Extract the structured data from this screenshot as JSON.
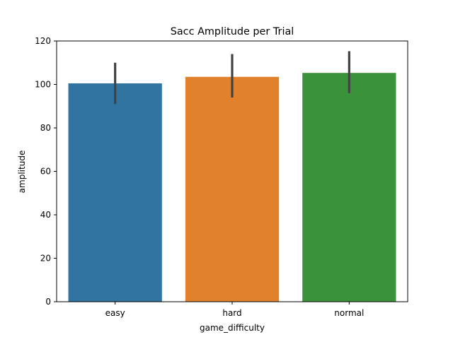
{
  "chart_data": {
    "type": "bar",
    "title": "Sacc Amplitude per Trial",
    "xlabel": "game_difficulty",
    "ylabel": "amplitude",
    "categories": [
      "easy",
      "hard",
      "normal"
    ],
    "values": [
      100.5,
      103.5,
      105.3
    ],
    "error_low": [
      91.0,
      94.0,
      96.0
    ],
    "error_high": [
      110.0,
      114.0,
      115.3
    ],
    "ylim": [
      0,
      120
    ],
    "yticks": [
      0,
      20,
      40,
      60,
      80,
      100,
      120
    ],
    "colors": [
      "#3274a1",
      "#e1812c",
      "#3a923a"
    ],
    "error_color": "#424242",
    "grid": false,
    "legend": "none"
  }
}
